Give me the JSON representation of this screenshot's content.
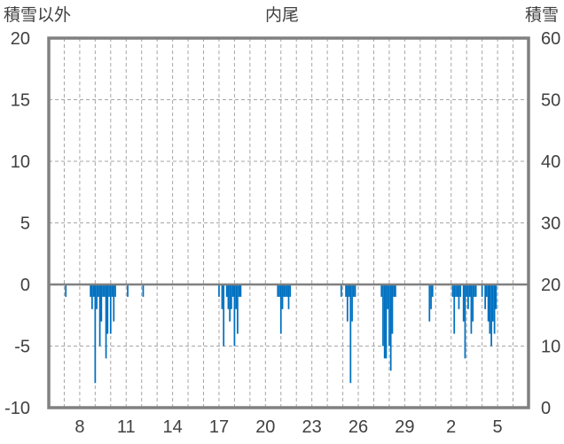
{
  "chart_data": {
    "type": "bar",
    "title": "内尾",
    "left_axis": {
      "label": "積雪以外",
      "ticks": [
        20,
        15,
        10,
        5,
        0,
        -5,
        -10
      ],
      "range": [
        -10,
        20
      ]
    },
    "right_axis": {
      "label": "積雪",
      "ticks": [
        60,
        50,
        40,
        30,
        20,
        10,
        0
      ],
      "range": [
        0,
        60
      ]
    },
    "x_axis": {
      "tick_labels": [
        "8",
        "11",
        "14",
        "17",
        "20",
        "23",
        "26",
        "29",
        "2",
        "5"
      ],
      "range": [
        6,
        37
      ],
      "grid": "dashed vertical lines",
      "dashed_positions": [
        6,
        7,
        8,
        9,
        10,
        11,
        12,
        13,
        14,
        15,
        16,
        17,
        18,
        19,
        20,
        21,
        22,
        23,
        24,
        25,
        26,
        27,
        28,
        29,
        30,
        31,
        32,
        33,
        34,
        35,
        36,
        37
      ]
    },
    "grid": "dashed horizontal lines at 5-unit intervals",
    "series": [
      {
        "color": "#0070C0",
        "bars": [
          {
            "x": 7.1,
            "v": -1
          },
          {
            "x": 8.7,
            "v": -1
          },
          {
            "x": 8.8,
            "v": -2
          },
          {
            "x": 8.9,
            "v": -1
          },
          {
            "x": 9.0,
            "v": -8
          },
          {
            "x": 9.1,
            "v": -2
          },
          {
            "x": 9.2,
            "v": -1
          },
          {
            "x": 9.3,
            "v": -5
          },
          {
            "x": 9.4,
            "v": -3
          },
          {
            "x": 9.5,
            "v": -1
          },
          {
            "x": 9.6,
            "v": -1
          },
          {
            "x": 9.7,
            "v": -6
          },
          {
            "x": 9.8,
            "v": -4
          },
          {
            "x": 9.9,
            "v": -1
          },
          {
            "x": 10.0,
            "v": -4
          },
          {
            "x": 10.1,
            "v": -1
          },
          {
            "x": 10.2,
            "v": -3
          },
          {
            "x": 10.3,
            "v": -1
          },
          {
            "x": 11.1,
            "v": -1
          },
          {
            "x": 12.1,
            "v": -1
          },
          {
            "x": 17.0,
            "v": -1
          },
          {
            "x": 17.2,
            "v": -2
          },
          {
            "x": 17.3,
            "v": -5
          },
          {
            "x": 17.5,
            "v": -1
          },
          {
            "x": 17.6,
            "v": -2
          },
          {
            "x": 17.7,
            "v": -3
          },
          {
            "x": 17.8,
            "v": -2
          },
          {
            "x": 17.9,
            "v": -1
          },
          {
            "x": 18.0,
            "v": -5
          },
          {
            "x": 18.1,
            "v": -2
          },
          {
            "x": 18.2,
            "v": -4
          },
          {
            "x": 18.3,
            "v": -1
          },
          {
            "x": 18.4,
            "v": -1
          },
          {
            "x": 20.8,
            "v": -1
          },
          {
            "x": 20.9,
            "v": -1
          },
          {
            "x": 21.0,
            "v": -4
          },
          {
            "x": 21.1,
            "v": -2
          },
          {
            "x": 21.2,
            "v": -1
          },
          {
            "x": 21.3,
            "v": -1
          },
          {
            "x": 21.4,
            "v": -1
          },
          {
            "x": 21.5,
            "v": -2
          },
          {
            "x": 21.6,
            "v": -1
          },
          {
            "x": 24.9,
            "v": -1
          },
          {
            "x": 25.2,
            "v": -1
          },
          {
            "x": 25.3,
            "v": -3
          },
          {
            "x": 25.4,
            "v": -1
          },
          {
            "x": 25.5,
            "v": -8
          },
          {
            "x": 25.6,
            "v": -3
          },
          {
            "x": 25.7,
            "v": -1
          },
          {
            "x": 25.8,
            "v": -1
          },
          {
            "x": 27.5,
            "v": -1
          },
          {
            "x": 27.6,
            "v": -5
          },
          {
            "x": 27.7,
            "v": -6
          },
          {
            "x": 27.8,
            "v": -6
          },
          {
            "x": 27.9,
            "v": -2
          },
          {
            "x": 28.0,
            "v": -5
          },
          {
            "x": 28.1,
            "v": -7
          },
          {
            "x": 28.2,
            "v": -4
          },
          {
            "x": 28.3,
            "v": -1
          },
          {
            "x": 28.4,
            "v": -1
          },
          {
            "x": 30.6,
            "v": -3
          },
          {
            "x": 30.7,
            "v": -2
          },
          {
            "x": 30.8,
            "v": -1
          },
          {
            "x": 32.1,
            "v": -1
          },
          {
            "x": 32.2,
            "v": -4
          },
          {
            "x": 32.3,
            "v": -1
          },
          {
            "x": 32.4,
            "v": -1
          },
          {
            "x": 32.5,
            "v": -2
          },
          {
            "x": 32.6,
            "v": -1
          },
          {
            "x": 32.8,
            "v": -3
          },
          {
            "x": 32.9,
            "v": -6
          },
          {
            "x": 33.0,
            "v": -1
          },
          {
            "x": 33.1,
            "v": -2
          },
          {
            "x": 33.2,
            "v": -1
          },
          {
            "x": 33.3,
            "v": -4
          },
          {
            "x": 33.4,
            "v": -3
          },
          {
            "x": 33.5,
            "v": -1
          },
          {
            "x": 33.6,
            "v": -1
          },
          {
            "x": 34.0,
            "v": -1
          },
          {
            "x": 34.2,
            "v": -2
          },
          {
            "x": 34.3,
            "v": -1
          },
          {
            "x": 34.4,
            "v": -3
          },
          {
            "x": 34.5,
            "v": -4
          },
          {
            "x": 34.6,
            "v": -5
          },
          {
            "x": 34.7,
            "v": -3
          },
          {
            "x": 34.8,
            "v": -4
          },
          {
            "x": 34.9,
            "v": -2
          }
        ]
      }
    ]
  }
}
